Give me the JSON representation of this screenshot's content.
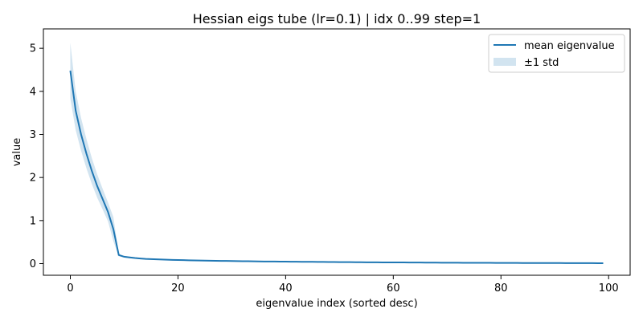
{
  "chart_data": {
    "type": "line",
    "title": "Hessian eigs tube (lr=0.1) | idx 0..99 step=1",
    "xlabel": "eigenvalue index (sorted desc)",
    "ylabel": "value",
    "xlim": [
      -5,
      104
    ],
    "ylim": [
      -0.27,
      5.45
    ],
    "xticks": [
      0,
      20,
      40,
      60,
      80,
      100
    ],
    "yticks": [
      0,
      1,
      2,
      3,
      4,
      5
    ],
    "legend_position": "top-right",
    "legend": {
      "line_label": "mean eigenvalue",
      "band_label": "±1 std"
    },
    "colors": {
      "line": "#1f77b4",
      "band": "#1f77b4"
    },
    "x": [
      0,
      1,
      2,
      3,
      4,
      5,
      6,
      7,
      8,
      9,
      10,
      11,
      12,
      13,
      14,
      15,
      16,
      17,
      18,
      19,
      20,
      21,
      22,
      23,
      24,
      25,
      26,
      27,
      28,
      29,
      30,
      31,
      32,
      33,
      34,
      35,
      36,
      37,
      38,
      39,
      40,
      41,
      42,
      43,
      44,
      45,
      46,
      47,
      48,
      49,
      50,
      51,
      52,
      53,
      54,
      55,
      56,
      57,
      58,
      59,
      60,
      61,
      62,
      63,
      64,
      65,
      66,
      67,
      68,
      69,
      70,
      71,
      72,
      73,
      74,
      75,
      76,
      77,
      78,
      79,
      80,
      81,
      82,
      83,
      84,
      85,
      86,
      87,
      88,
      89,
      90,
      91,
      92,
      93,
      94,
      95,
      96,
      97,
      98,
      99
    ],
    "series": [
      {
        "name": "mean eigenvalue",
        "values": [
          4.48,
          3.55,
          3.0,
          2.55,
          2.15,
          1.8,
          1.5,
          1.2,
          0.8,
          0.2,
          0.16,
          0.145,
          0.13,
          0.12,
          0.11,
          0.105,
          0.1,
          0.095,
          0.09,
          0.087,
          0.084,
          0.081,
          0.078,
          0.075,
          0.072,
          0.07,
          0.068,
          0.066,
          0.064,
          0.062,
          0.06,
          0.058,
          0.056,
          0.055,
          0.053,
          0.052,
          0.05,
          0.049,
          0.048,
          0.047,
          0.046,
          0.045,
          0.044,
          0.043,
          0.042,
          0.041,
          0.04,
          0.039,
          0.038,
          0.037,
          0.036,
          0.035,
          0.034,
          0.033,
          0.032,
          0.031,
          0.031,
          0.03,
          0.029,
          0.029,
          0.028,
          0.027,
          0.027,
          0.026,
          0.025,
          0.025,
          0.024,
          0.023,
          0.023,
          0.022,
          0.022,
          0.021,
          0.021,
          0.02,
          0.02,
          0.019,
          0.019,
          0.018,
          0.018,
          0.017,
          0.017,
          0.016,
          0.016,
          0.016,
          0.015,
          0.015,
          0.014,
          0.014,
          0.014,
          0.013,
          0.013,
          0.013,
          0.012,
          0.012,
          0.012,
          0.011,
          0.011,
          0.011,
          0.01,
          0.01
        ],
        "std": [
          0.65,
          0.45,
          0.38,
          0.34,
          0.3,
          0.27,
          0.24,
          0.22,
          0.28,
          0.03,
          0.02,
          0.018,
          0.016,
          0.014,
          0.013,
          0.012,
          0.011,
          0.011,
          0.01,
          0.01,
          0.01,
          0.009,
          0.009,
          0.009,
          0.008,
          0.008,
          0.008,
          0.008,
          0.007,
          0.007,
          0.007,
          0.007,
          0.006,
          0.006,
          0.006,
          0.006,
          0.006,
          0.005,
          0.005,
          0.005,
          0.005,
          0.005,
          0.005,
          0.005,
          0.004,
          0.004,
          0.004,
          0.004,
          0.004,
          0.004,
          0.004,
          0.004,
          0.004,
          0.003,
          0.003,
          0.003,
          0.003,
          0.003,
          0.003,
          0.003,
          0.003,
          0.003,
          0.003,
          0.003,
          0.003,
          0.003,
          0.002,
          0.002,
          0.002,
          0.002,
          0.002,
          0.002,
          0.002,
          0.002,
          0.002,
          0.002,
          0.002,
          0.002,
          0.002,
          0.002,
          0.002,
          0.002,
          0.002,
          0.002,
          0.002,
          0.002,
          0.002,
          0.002,
          0.002,
          0.002,
          0.002,
          0.002,
          0.002,
          0.002,
          0.002,
          0.002,
          0.002,
          0.002,
          0.002,
          0.002
        ]
      }
    ]
  }
}
